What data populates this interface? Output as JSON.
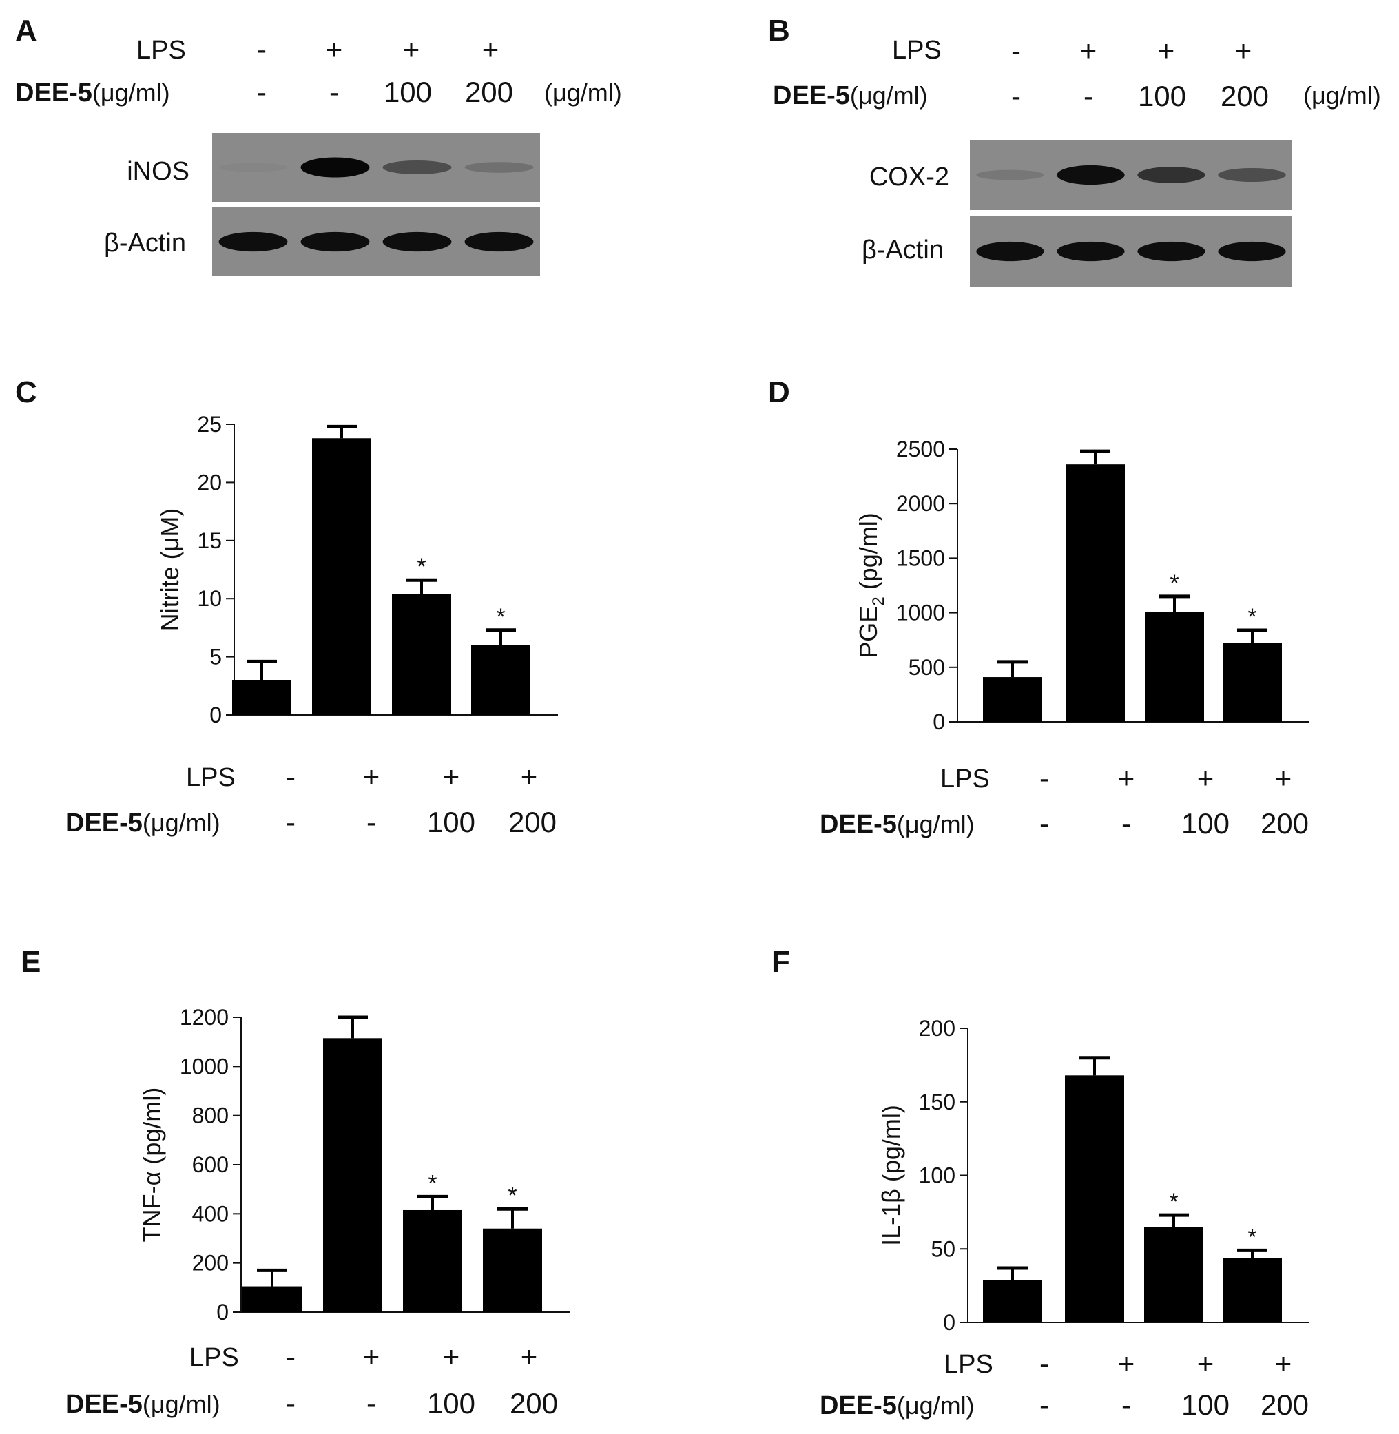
{
  "treatments": {
    "lps_label": "LPS",
    "dee_label_bold": "DEE-5",
    "dee_label_unit": "(μg/ml)",
    "units_suffix": "(μg/ml)",
    "lps": [
      "-",
      "+",
      "+",
      "+"
    ],
    "dee": [
      "-",
      "-",
      "100",
      "200"
    ]
  },
  "blots": {
    "A": {
      "letter": "A",
      "bands": [
        {
          "name": "iNOS",
          "intensities": [
            0.05,
            0.95,
            0.45,
            0.2
          ]
        },
        {
          "name": "β-Actin",
          "intensities": [
            0.9,
            0.9,
            0.9,
            0.9
          ]
        }
      ]
    },
    "B": {
      "letter": "B",
      "bands": [
        {
          "name": "COX-2",
          "intensities": [
            0.15,
            0.9,
            0.65,
            0.45
          ]
        },
        {
          "name": "β-Actin",
          "intensities": [
            0.9,
            0.9,
            0.9,
            0.9
          ]
        }
      ]
    }
  },
  "colors": {
    "bar": "#000000",
    "axis": "#111111",
    "blot_bg": "#8a8a8a"
  },
  "chart_data": [
    {
      "panel": "C",
      "type": "bar",
      "ylabel": "Nitrite (μM)",
      "ylim": [
        0,
        25
      ],
      "ticks": [
        0,
        5,
        10,
        15,
        20,
        25
      ],
      "values": [
        3.0,
        23.8,
        10.4,
        6.0
      ],
      "errors": [
        1.6,
        1.0,
        1.2,
        1.3
      ],
      "significance": [
        "",
        "",
        "*",
        "*"
      ]
    },
    {
      "panel": "D",
      "type": "bar",
      "ylabel_main": "PGE",
      "ylabel_sub": "2",
      "ylabel_unit": " (pg/ml)",
      "ylim": [
        0,
        2500
      ],
      "ticks": [
        0,
        500,
        1000,
        1500,
        2000,
        2500
      ],
      "values": [
        410,
        2360,
        1010,
        720
      ],
      "errors": [
        140,
        120,
        140,
        120
      ],
      "significance": [
        "",
        "",
        "*",
        "*"
      ]
    },
    {
      "panel": "E",
      "type": "bar",
      "ylabel": "TNF-α (pg/ml)",
      "ylim": [
        0,
        1200
      ],
      "ticks": [
        0,
        200,
        400,
        600,
        800,
        1000,
        1200
      ],
      "values": [
        105,
        1115,
        415,
        340
      ],
      "errors": [
        65,
        85,
        55,
        80
      ],
      "significance": [
        "",
        "",
        "*",
        "*"
      ]
    },
    {
      "panel": "F",
      "type": "bar",
      "ylabel": "IL-1β (pg/ml)",
      "ylim": [
        0,
        200
      ],
      "ticks": [
        0,
        50,
        100,
        150,
        200
      ],
      "values": [
        29,
        168,
        65,
        44
      ],
      "errors": [
        8,
        12,
        8,
        5
      ],
      "significance": [
        "",
        "",
        "*",
        "*"
      ]
    }
  ]
}
